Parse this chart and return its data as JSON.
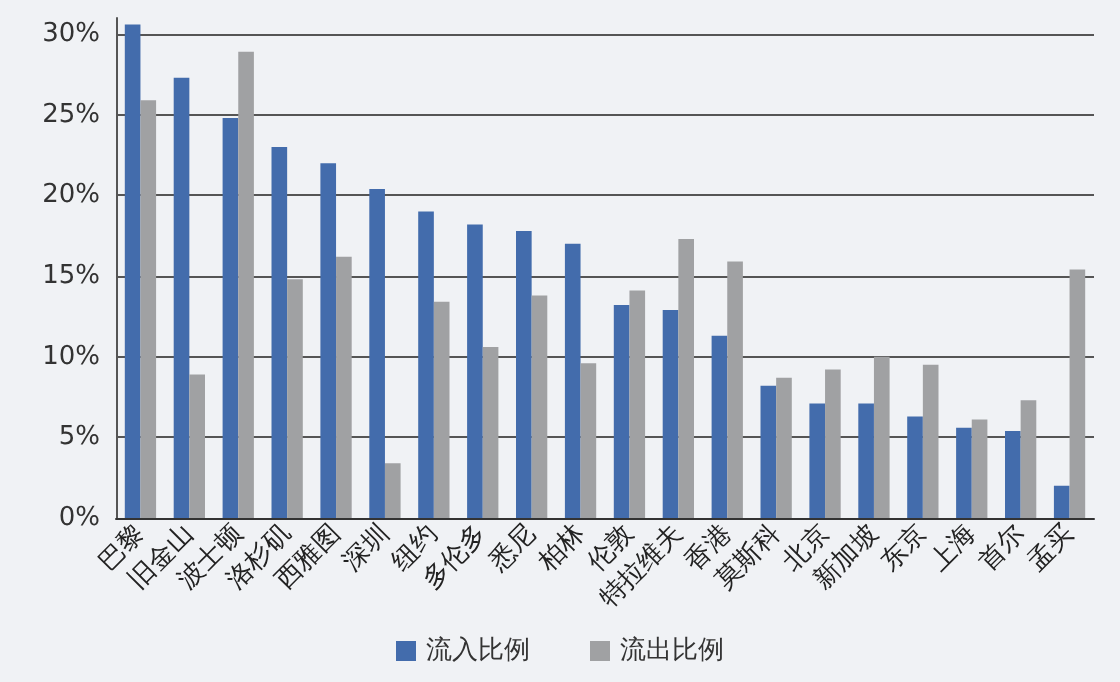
{
  "chart_data": {
    "type": "bar",
    "categories": [
      "巴黎",
      "旧金山",
      "波士顿",
      "洛杉矶",
      "西雅图",
      "深圳",
      "纽约",
      "多伦多",
      "悉尼",
      "柏林",
      "伦敦",
      "特拉维夫",
      "香港",
      "莫斯科",
      "北京",
      "新加坡",
      "东京",
      "上海",
      "首尔",
      "孟买"
    ],
    "series": [
      {
        "name": "流入比例",
        "color": "#436cac",
        "values": [
          30.6,
          27.3,
          24.8,
          23.0,
          22.0,
          20.4,
          19.0,
          18.2,
          17.8,
          17.0,
          13.2,
          12.9,
          11.3,
          8.2,
          7.1,
          7.1,
          6.3,
          5.6,
          5.4,
          2.0
        ]
      },
      {
        "name": "流出比例",
        "color": "#a0a1a3",
        "values": [
          25.9,
          8.9,
          28.9,
          14.8,
          16.2,
          3.4,
          13.4,
          10.6,
          13.8,
          9.6,
          14.1,
          17.3,
          15.9,
          8.7,
          9.2,
          10.0,
          9.5,
          6.1,
          7.3,
          15.4
        ]
      }
    ],
    "ylim": [
      0,
      31
    ],
    "yticks": [
      {
        "value": 0,
        "label": "0%"
      },
      {
        "value": 5,
        "label": "5%"
      },
      {
        "value": 10,
        "label": "10%"
      },
      {
        "value": 15,
        "label": "15%"
      },
      {
        "value": 20,
        "label": "20%"
      },
      {
        "value": 25,
        "label": "25%"
      },
      {
        "value": 30,
        "label": "30%"
      }
    ],
    "grid": "y",
    "legend": "bottom"
  }
}
